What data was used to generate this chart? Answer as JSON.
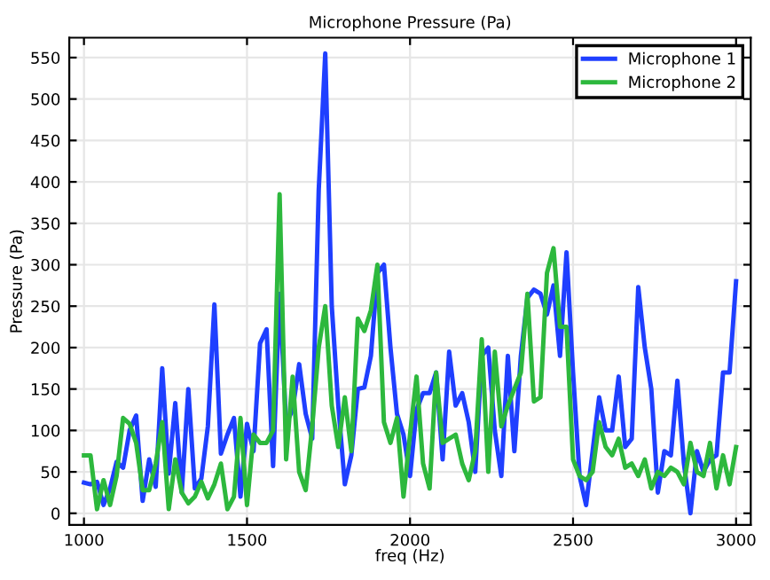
{
  "chart_data": {
    "type": "line",
    "title": "Microphone Pressure (Pa)",
    "xlabel": "freq (Hz)",
    "ylabel": "Pressure (Pa)",
    "x": [
      1000,
      1020,
      1040,
      1060,
      1080,
      1100,
      1120,
      1140,
      1160,
      1180,
      1200,
      1220,
      1240,
      1260,
      1280,
      1300,
      1320,
      1340,
      1360,
      1380,
      1400,
      1420,
      1440,
      1460,
      1480,
      1500,
      1520,
      1540,
      1560,
      1580,
      1600,
      1620,
      1640,
      1660,
      1680,
      1700,
      1720,
      1740,
      1760,
      1780,
      1800,
      1820,
      1840,
      1860,
      1880,
      1900,
      1920,
      1940,
      1960,
      1980,
      2000,
      2020,
      2040,
      2060,
      2080,
      2100,
      2120,
      2140,
      2160,
      2180,
      2200,
      2220,
      2240,
      2260,
      2280,
      2300,
      2320,
      2340,
      2360,
      2380,
      2400,
      2420,
      2440,
      2460,
      2480,
      2500,
      2520,
      2540,
      2560,
      2580,
      2600,
      2620,
      2640,
      2660,
      2680,
      2700,
      2720,
      2740,
      2760,
      2780,
      2800,
      2820,
      2840,
      2860,
      2880,
      2900,
      2920,
      2940,
      2960,
      2980,
      3000
    ],
    "series": [
      {
        "name": "Microphone 1",
        "color": "#1f3fff",
        "values": [
          37,
          35,
          38,
          10,
          30,
          62,
          55,
          100,
          118,
          15,
          65,
          32,
          175,
          48,
          133,
          25,
          150,
          30,
          42,
          105,
          252,
          72,
          95,
          115,
          20,
          108,
          75,
          205,
          222,
          57,
          265,
          108,
          125,
          180,
          120,
          90,
          390,
          555,
          250,
          130,
          35,
          70,
          150,
          152,
          190,
          290,
          300,
          200,
          120,
          95,
          45,
          125,
          145,
          145,
          170,
          65,
          195,
          130,
          145,
          110,
          50,
          190,
          200,
          100,
          45,
          190,
          75,
          190,
          260,
          270,
          265,
          240,
          275,
          190,
          315,
          170,
          45,
          10,
          75,
          140,
          100,
          100,
          165,
          80,
          90,
          273,
          200,
          150,
          25,
          75,
          70,
          160,
          60,
          0,
          75,
          50,
          65,
          70,
          170,
          170,
          280
        ]
      },
      {
        "name": "Microphone 2",
        "color": "#2db83d",
        "values": [
          70,
          70,
          5,
          40,
          10,
          45,
          115,
          108,
          85,
          28,
          28,
          60,
          110,
          5,
          65,
          25,
          12,
          20,
          38,
          18,
          35,
          60,
          5,
          20,
          115,
          10,
          95,
          85,
          85,
          100,
          385,
          65,
          165,
          50,
          28,
          105,
          200,
          250,
          130,
          80,
          140,
          75,
          235,
          220,
          245,
          300,
          110,
          85,
          115,
          20,
          95,
          165,
          60,
          30,
          170,
          85,
          90,
          95,
          60,
          40,
          75,
          210,
          50,
          195,
          105,
          130,
          150,
          170,
          265,
          135,
          140,
          290,
          320,
          225,
          225,
          65,
          45,
          40,
          50,
          110,
          80,
          70,
          90,
          55,
          60,
          45,
          65,
          30,
          50,
          45,
          55,
          50,
          35,
          85,
          50,
          45,
          85,
          30,
          70,
          35,
          80
        ]
      }
    ],
    "xlim": [
      955,
      3045
    ],
    "ylim": [
      -14,
      574
    ],
    "xticks": [
      1000,
      1500,
      2000,
      2500,
      3000
    ],
    "yticks": [
      0,
      50,
      100,
      150,
      200,
      250,
      300,
      350,
      400,
      450,
      500,
      550
    ],
    "grid": true,
    "legend": "top right",
    "marker": "none",
    "line_style": "solid"
  }
}
